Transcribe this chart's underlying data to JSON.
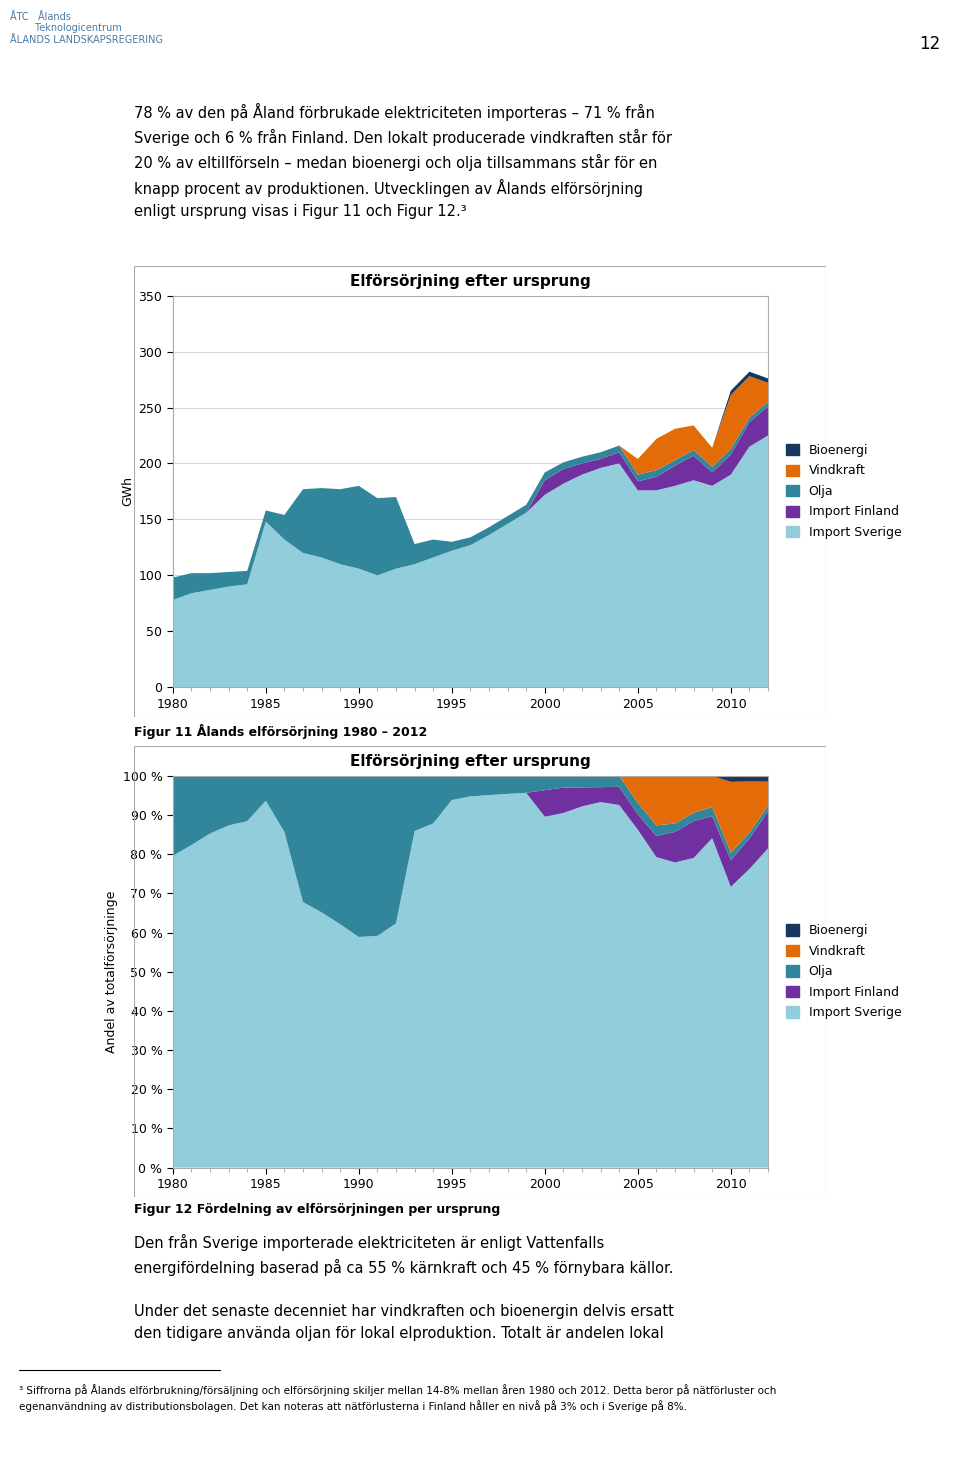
{
  "years": [
    1980,
    1981,
    1982,
    1983,
    1984,
    1985,
    1986,
    1987,
    1988,
    1989,
    1990,
    1991,
    1992,
    1993,
    1994,
    1995,
    1996,
    1997,
    1998,
    1999,
    2000,
    2001,
    2002,
    2003,
    2004,
    2005,
    2006,
    2007,
    2008,
    2009,
    2010,
    2011,
    2012
  ],
  "imp_swe": [
    78,
    84,
    87,
    90,
    92,
    148,
    132,
    120,
    116,
    110,
    106,
    100,
    106,
    110,
    116,
    122,
    127,
    136,
    146,
    156,
    172,
    182,
    190,
    196,
    200,
    176,
    176,
    180,
    185,
    180,
    190,
    215,
    225
  ],
  "imp_fin": [
    0,
    0,
    0,
    0,
    0,
    0,
    0,
    0,
    0,
    0,
    0,
    0,
    0,
    0,
    0,
    0,
    0,
    0,
    0,
    0,
    13,
    13,
    10,
    8,
    10,
    8,
    12,
    18,
    22,
    12,
    18,
    22,
    26
  ],
  "olja": [
    20,
    18,
    15,
    13,
    12,
    10,
    22,
    57,
    62,
    67,
    74,
    69,
    64,
    18,
    16,
    8,
    7,
    7,
    7,
    7,
    7,
    6,
    6,
    6,
    6,
    6,
    6,
    5,
    5,
    5,
    5,
    4,
    4
  ],
  "vindkraft": [
    0,
    0,
    0,
    0,
    0,
    0,
    0,
    0,
    0,
    0,
    0,
    0,
    0,
    0,
    0,
    0,
    0,
    0,
    0,
    0,
    0,
    0,
    0,
    0,
    0,
    14,
    28,
    28,
    22,
    17,
    48,
    37,
    17
  ],
  "bioenergi": [
    0,
    0,
    0,
    0,
    0,
    0,
    0,
    0,
    0,
    0,
    0,
    0,
    0,
    0,
    0,
    0,
    0,
    0,
    0,
    0,
    0,
    0,
    0,
    0,
    0,
    0,
    0,
    0,
    0,
    0,
    4,
    4,
    4
  ],
  "color_imp_swe": "#92CDDC",
  "color_imp_fin": "#7030A0",
  "color_olja": "#31869B",
  "color_vindkraft": "#E36C09",
  "color_bioenergi": "#17375E",
  "chart_title": "Elförsörjning efter ursprung",
  "ylabel1": "GWh",
  "ylabel2": "Andel av totalförsörjninge",
  "xticks": [
    1980,
    1985,
    1990,
    1995,
    2000,
    2005,
    2010
  ],
  "yticks1": [
    0,
    50,
    100,
    150,
    200,
    250,
    300,
    350
  ],
  "ylim1": [
    0,
    350
  ],
  "yticks2pct": [
    0,
    10,
    20,
    30,
    40,
    50,
    60,
    70,
    80,
    90,
    100
  ],
  "legend_labels": [
    "Bioenergi",
    "Vindkraft",
    "Olja",
    "Import Finland",
    "Import Sverige"
  ],
  "caption1": "Figur 11 Ålands elförsörjning 1980 – 2012",
  "caption2": "Figur 12 Fördelning av elförsörjningen per ursprung",
  "page_num": "12",
  "header_line1": "78 % av den på Åland förbrukade elektriciteten importeras – 71 % från",
  "header_line2": "Sverige och 6 % från Finland. Den lokalt producerade vindkraften står för",
  "header_line3": "20 % av eltillförseln – medan bioenergi och olja tillsammans står för en",
  "header_line4": "knapp procent av produktionen. Utvecklingen av Ålands elförsörjning",
  "header_line5": "enligt ursprung visas i Figur 11 och Figur 12.³",
  "body_line1": "Den från Sverige importerade elektriciteten är enligt Vattenfalls",
  "body_line2": "energifördelning baserad på ca 55 % kärnkraft och 45 % förnybara källor.",
  "body_line3": "Under det senaste decenniet har vindkraften och bioenergin delvis ersatt",
  "body_line4": "den tidigare använda oljan för lokal elproduktion. Totalt är andelen lokal",
  "footnote_sup": "³",
  "footnote_text": " Siffrorna på Ålands elförbrukning/försäljning och elförsörjning skiljer mellan 14-8% mellan åren 1980 och 2012. Detta beror på nätförluster och\negenanvändning av distributionsbolagen. Det kan noteras att nätförlusterna i Finland håller en nivå på 3% och i Sverige på 8%."
}
